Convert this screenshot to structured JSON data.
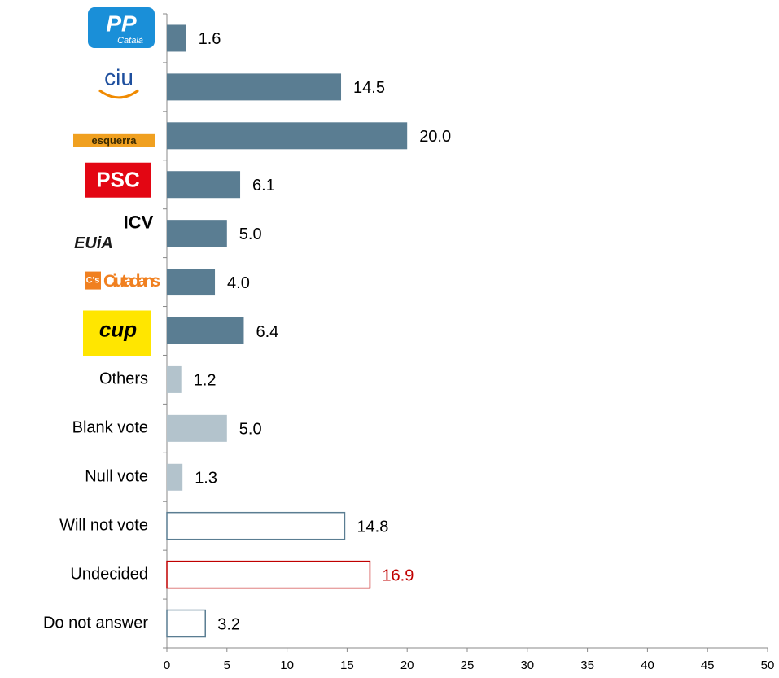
{
  "chart_data": {
    "type": "barh",
    "categories": [
      "PP",
      "ciu",
      "esquerra",
      "PSC",
      "ICV",
      "Ciutadans",
      "cup",
      "Others",
      "Blank vote",
      "Null vote",
      "Will not vote",
      "Undecided",
      "Do not answer"
    ],
    "category_sublabels": [
      "Català",
      null,
      null,
      null,
      "EUiA",
      "C's",
      null,
      null,
      null,
      null,
      null,
      null,
      null
    ],
    "values": [
      1.6,
      14.5,
      20.0,
      6.1,
      5.0,
      4.0,
      6.4,
      1.2,
      5.0,
      1.3,
      14.8,
      16.9,
      3.2
    ],
    "value_labels": [
      "1.6",
      "14.5",
      "20.0",
      "6.1",
      "5.0",
      "4.0",
      "6.4",
      "1.2",
      "5.0",
      "1.3",
      "14.8",
      "16.9",
      "3.2"
    ],
    "fills": [
      "#5a7d92",
      "#5a7d92",
      "#5a7d92",
      "#5a7d92",
      "#5a7d92",
      "#5a7d92",
      "#5a7d92",
      "#b3c3cc",
      "#b3c3cc",
      "#b3c3cc",
      "#ffffff",
      "#ffffff",
      "#ffffff"
    ],
    "strokes": [
      "none",
      "none",
      "none",
      "none",
      "none",
      "none",
      "none",
      "none",
      "none",
      "none",
      "#5a7d92",
      "#c00000",
      "#5a7d92"
    ],
    "label_colors": [
      "#000000",
      "#000000",
      "#000000",
      "#000000",
      "#000000",
      "#000000",
      "#000000",
      "#000000",
      "#000000",
      "#000000",
      "#000000",
      "#c00000",
      "#000000"
    ],
    "xlim": [
      0,
      50
    ],
    "xticks": [
      0,
      5,
      10,
      15,
      20,
      25,
      30,
      35,
      40,
      45,
      50
    ]
  }
}
